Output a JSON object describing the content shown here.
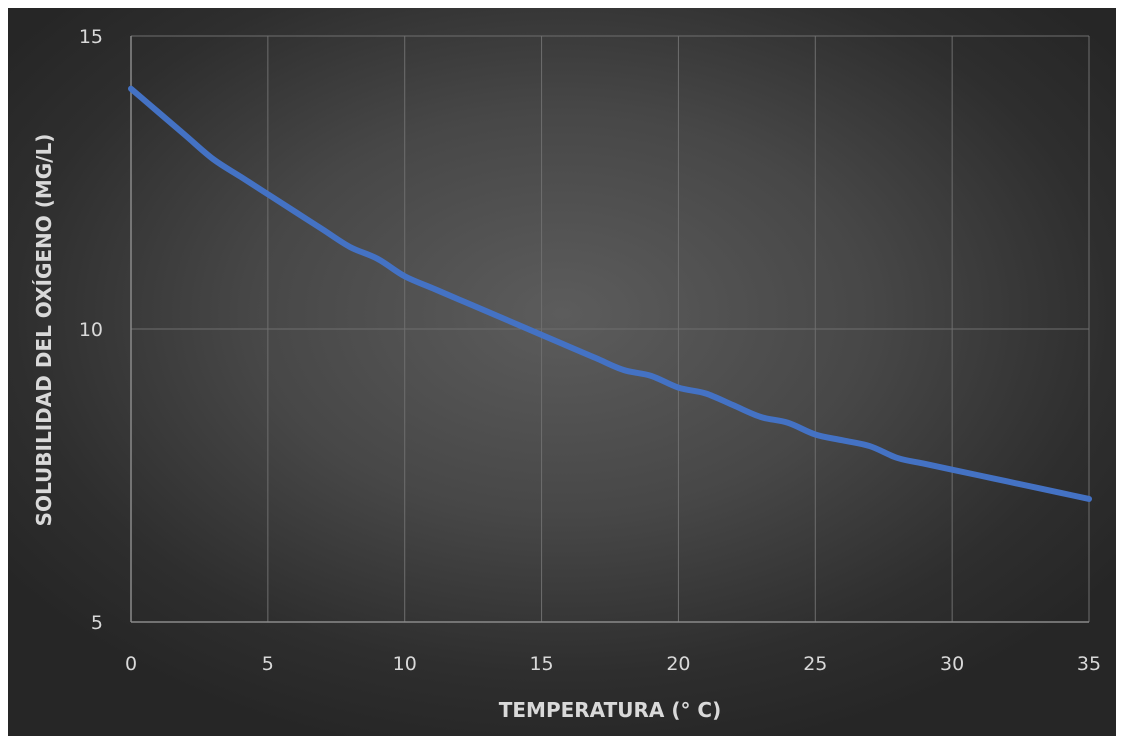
{
  "chart_data": {
    "type": "line",
    "title": "",
    "xlabel": "TEMPERATURA (° C)",
    "ylabel": "SOLUBILIDAD DEL OXÍGENO (MG/L)",
    "xlim": [
      0,
      35
    ],
    "ylim": [
      5,
      15
    ],
    "xticks": [
      "0",
      "5",
      "10",
      "15",
      "20",
      "25",
      "30",
      "35"
    ],
    "yticks": [
      "5",
      "10",
      "15"
    ],
    "grid": true,
    "legend": "none",
    "background": "#474747",
    "series": [
      {
        "color": "#4472c4",
        "x": [
          0,
          1,
          2,
          3,
          4,
          5,
          6,
          7,
          8,
          9,
          10,
          11,
          12,
          13,
          14,
          15,
          16,
          17,
          18,
          19,
          20,
          21,
          22,
          23,
          24,
          25,
          26,
          27,
          28,
          29,
          30,
          31,
          32,
          33,
          34,
          35
        ],
        "y": [
          14.1,
          13.7,
          13.3,
          12.9,
          12.6,
          12.3,
          12.0,
          11.7,
          11.4,
          11.2,
          10.9,
          10.7,
          10.5,
          10.3,
          10.1,
          9.9,
          9.7,
          9.5,
          9.3,
          9.2,
          9.0,
          8.9,
          8.7,
          8.5,
          8.4,
          8.2,
          8.1,
          8.0,
          7.8,
          7.7,
          7.6,
          7.5,
          7.4,
          7.3,
          7.2,
          7.1
        ]
      }
    ]
  }
}
